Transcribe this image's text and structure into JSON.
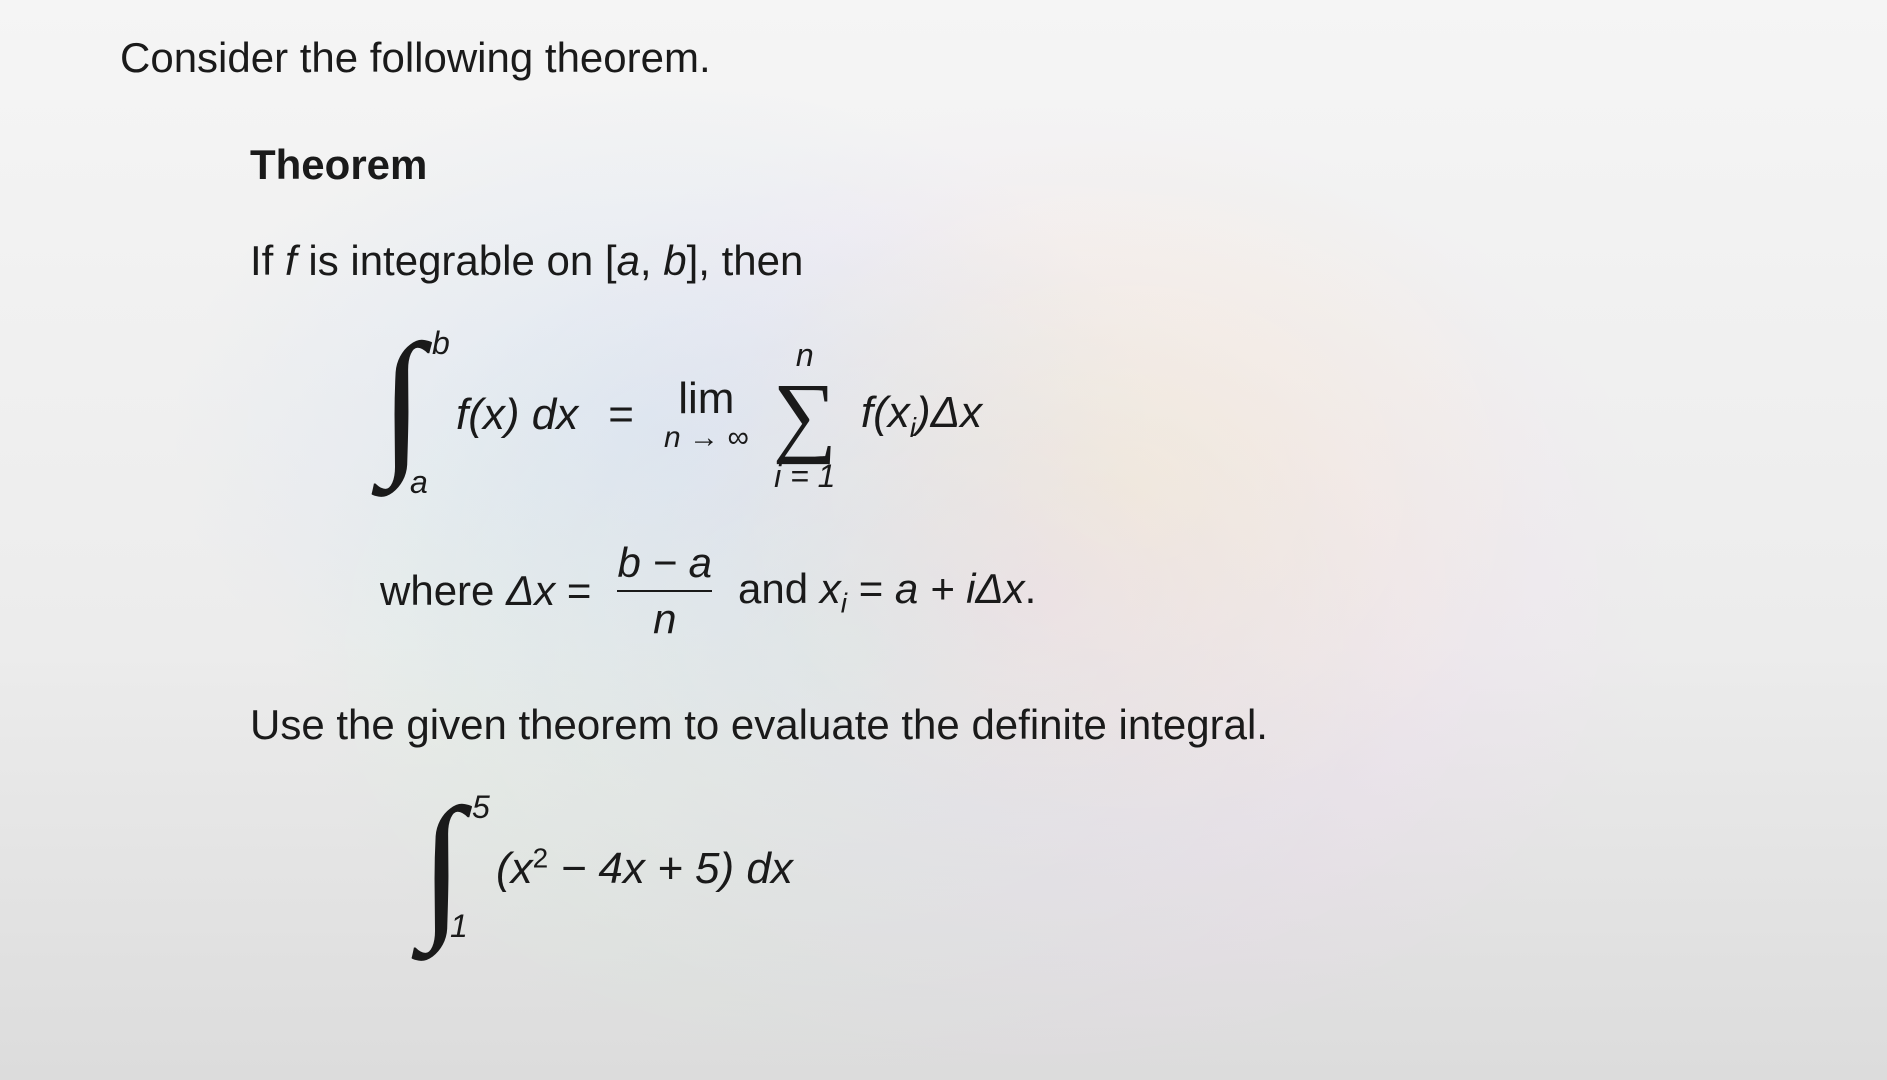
{
  "intro": "Consider the following theorem.",
  "heading": "Theorem",
  "premise_before": "If ",
  "premise_f": "f",
  "premise_mid": " is integrable on [",
  "premise_a": "a",
  "premise_comma": ", ",
  "premise_b": "b",
  "premise_after": "], then",
  "formula": {
    "int_upper": "b",
    "int_lower": "a",
    "int_body": "f(x) dx",
    "equals": "=",
    "lim_top": "lim",
    "lim_bot": "n → ∞",
    "sigma_top": "n",
    "sigma_bot": "i = 1",
    "summand_before": "f(x",
    "summand_sub": "i",
    "summand_after": ")Δx"
  },
  "where": {
    "where_word": "where ",
    "dx": "Δx",
    "eq1": " = ",
    "num": "b − a",
    "den": "n",
    "and": " and ",
    "xi_before": "x",
    "xi_sub": "i",
    "eq2": " = ",
    "rhs": "a + iΔx",
    "period": "."
  },
  "use_text": "Use the given theorem to evaluate the definite integral.",
  "compute": {
    "int_upper": "5",
    "int_lower": "1",
    "body_before": "(x",
    "body_exp": "2",
    "body_after": " − 4x + 5) dx"
  },
  "style": {
    "text_color": "#1a1a1a",
    "bg_top": "#f5f5f5",
    "halo_pink": "rgba(255,180,255,0.25)",
    "halo_green": "rgba(180,255,200,0.25)",
    "halo_yellow": "rgba(255,255,150,0.25)",
    "halo_blue": "rgba(160,200,255,0.20)",
    "font_size_body": 42,
    "font_size_formula": 44,
    "font_size_sub": 28,
    "font_family": "Lucida Sans / Verdana"
  }
}
